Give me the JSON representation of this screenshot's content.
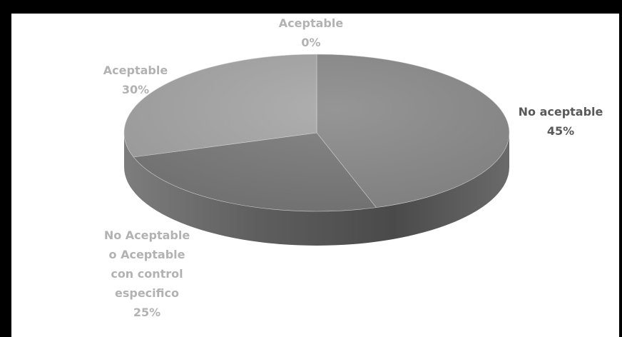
{
  "chart_data": {
    "type": "pie",
    "style": "3d",
    "slices": [
      {
        "label": "No aceptable",
        "value": 45,
        "value_label": "45%",
        "color": "#8a8a8a"
      },
      {
        "label": "No Aceptable o Aceptable con control especifico",
        "label_lines": [
          "No Aceptable",
          "o Aceptable",
          "con control",
          "especifico"
        ],
        "value": 25,
        "value_label": "25%",
        "color": "#7a7a7a"
      },
      {
        "label": "Aceptable",
        "value": 30,
        "value_label": "30%",
        "color": "#a6a6a6"
      },
      {
        "label": "Aceptable",
        "value": 0,
        "value_label": "0%",
        "color": "#c4c4c4"
      }
    ],
    "label_color": "#b2b2b2",
    "label_color_dark": "#595959",
    "legend": "none"
  }
}
